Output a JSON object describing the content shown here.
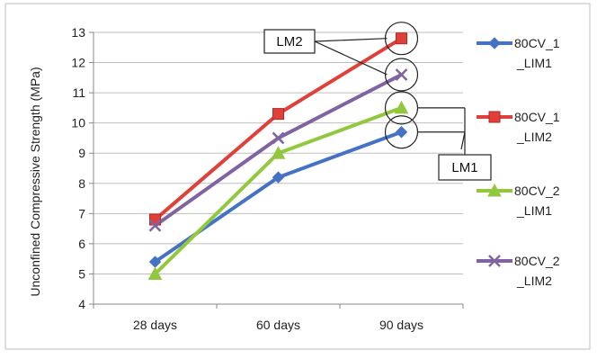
{
  "chart_data": {
    "type": "line",
    "title": "",
    "xlabel": "",
    "ylabel": "Unconfined Compressive Strength (MPa)",
    "categories": [
      "28 days",
      "60 days",
      "90 days"
    ],
    "ylim": [
      4,
      13
    ],
    "yticks": [
      4,
      5,
      6,
      7,
      8,
      9,
      10,
      11,
      12,
      13
    ],
    "grid": true,
    "legend_position": "right",
    "series": [
      {
        "name": "80CV_1_LIM1",
        "legend_lines": [
          "80CV_1",
          "_LIM1"
        ],
        "color": "#4472C4",
        "marker": "diamond",
        "values": [
          5.4,
          8.2,
          9.7
        ]
      },
      {
        "name": "80CV_1_LIM2",
        "legend_lines": [
          "80CV_1",
          "_LIM2"
        ],
        "color": "#E0403A",
        "marker": "square",
        "values": [
          6.8,
          10.3,
          12.8
        ]
      },
      {
        "name": "80CV_2_LIM1",
        "legend_lines": [
          "80CV_2",
          "_LIM1"
        ],
        "color": "#92C83E",
        "marker": "triangle",
        "values": [
          5.0,
          9.0,
          10.5
        ]
      },
      {
        "name": "80CV_2_LIM2",
        "legend_lines": [
          "80CV_2",
          "_LIM2"
        ],
        "color": "#8064A2",
        "marker": "x",
        "values": [
          6.6,
          9.5,
          11.6
        ]
      }
    ],
    "annotations": [
      {
        "label": "LM2",
        "points": [
          {
            "category": "90 days",
            "value": 12.8
          },
          {
            "category": "90 days",
            "value": 11.6
          }
        ]
      },
      {
        "label": "LM1",
        "points": [
          {
            "category": "90 days",
            "value": 10.5
          },
          {
            "category": "90 days",
            "value": 9.7
          }
        ]
      }
    ]
  }
}
